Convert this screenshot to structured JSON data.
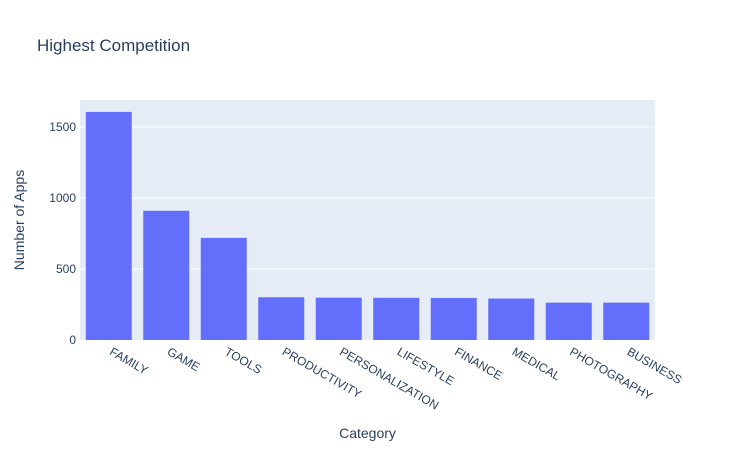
{
  "chart_data": {
    "type": "bar",
    "title": "Highest Competition",
    "xlabel": "Category",
    "ylabel": "Number of Apps",
    "categories": [
      "FAMILY",
      "GAME",
      "TOOLS",
      "PRODUCTIVITY",
      "PERSONALIZATION",
      "LIFESTYLE",
      "FINANCE",
      "MEDICAL",
      "PHOTOGRAPHY",
      "BUSINESS"
    ],
    "values": [
      1606,
      910,
      719,
      301,
      298,
      297,
      296,
      292,
      263,
      263
    ],
    "yticks": [
      "0",
      "500",
      "1000",
      "1500"
    ],
    "ylim": [
      0,
      1690
    ],
    "grid": true,
    "colors": {
      "bar": "#636efa",
      "plot_bg": "#e5ecf6",
      "grid": "#ffffff",
      "text": "#2a3f5f"
    }
  }
}
